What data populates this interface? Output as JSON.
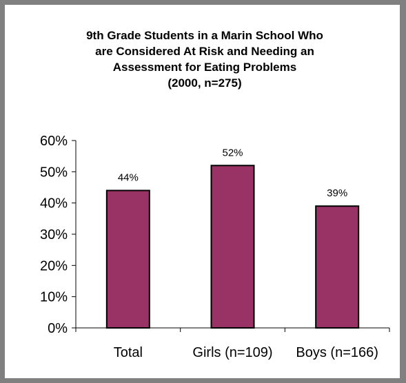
{
  "chart_data": {
    "type": "bar",
    "title_lines": [
      "9th Grade Students in a Marin School Who",
      "are Considered At Risk and Needing an",
      "Assessment for Eating Problems",
      "(2000, n=275)"
    ],
    "categories": [
      "Total",
      "Girls (n=109)",
      "Boys (n=166)"
    ],
    "values": [
      44,
      52,
      39
    ],
    "value_labels": [
      "44%",
      "52%",
      "39%"
    ],
    "xlabel": "",
    "ylabel": "",
    "ylim": [
      0,
      60
    ],
    "y_ticks": [
      0,
      10,
      20,
      30,
      40,
      50,
      60
    ],
    "y_tick_labels": [
      "0%",
      "10%",
      "20%",
      "30%",
      "40%",
      "50%",
      "60%"
    ],
    "grid": false,
    "legend": "none",
    "bar_color": "#993366",
    "bar_outline": "#000000"
  },
  "frame": {
    "border_color": "#808080",
    "background": "#ffffff"
  }
}
